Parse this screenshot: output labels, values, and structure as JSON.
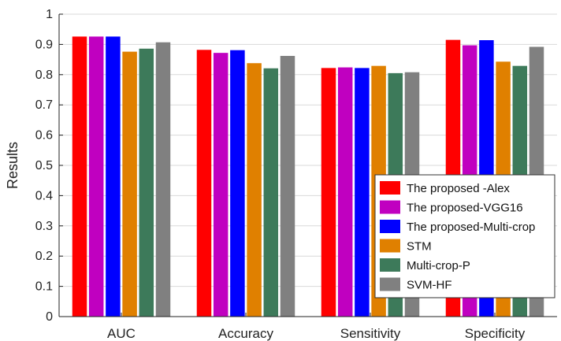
{
  "chart_data": {
    "type": "bar",
    "categories": [
      "AUC",
      "Accuracy",
      "Sensitivity",
      "Specificity"
    ],
    "ylabel": "Results",
    "xlabel": "",
    "ylim": [
      0,
      1
    ],
    "yticks": [
      0,
      0.1,
      0.2,
      0.3,
      0.4,
      0.5,
      0.6,
      0.7,
      0.8,
      0.9,
      1
    ],
    "ytick_labels": [
      "0",
      "0.1",
      "0.2",
      "0.3",
      "0.4",
      "0.5",
      "0.6",
      "0.7",
      "0.8",
      "0.9",
      "1"
    ],
    "grid": true,
    "legend_position": "bottom-right",
    "series": [
      {
        "name": "The proposed -Alex",
        "color": "#ff0000",
        "values": [
          0.926,
          0.882,
          0.822,
          0.915
        ]
      },
      {
        "name": "The proposed-VGG16",
        "color": "#c000c0",
        "values": [
          0.926,
          0.872,
          0.824,
          0.897
        ]
      },
      {
        "name": "The proposed-Multi-crop",
        "color": "#0000ff",
        "values": [
          0.926,
          0.881,
          0.822,
          0.914
        ]
      },
      {
        "name": "STM",
        "color": "#e08000",
        "values": [
          0.876,
          0.838,
          0.829,
          0.843
        ]
      },
      {
        "name": "Multi-crop-P",
        "color": "#3d7a5a",
        "values": [
          0.886,
          0.821,
          0.805,
          0.829
        ]
      },
      {
        "name": "SVM-HF",
        "color": "#808080",
        "values": [
          0.907,
          0.862,
          0.808,
          0.892
        ]
      }
    ]
  }
}
